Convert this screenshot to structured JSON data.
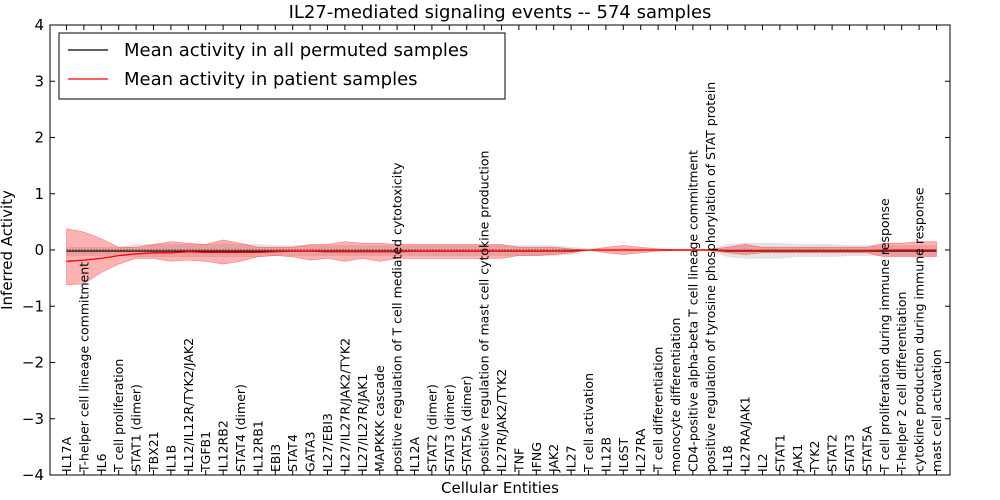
{
  "chart_data": {
    "type": "line",
    "title": "IL27-mediated signaling events -- 574 samples",
    "xlabel": "Cellular Entities",
    "ylabel": "Inferred Activity",
    "ylim": [
      -4,
      4
    ],
    "yticks": [
      4,
      3,
      2,
      1,
      0,
      -1,
      -2,
      -3,
      -4
    ],
    "ytick_labels": [
      "4",
      "3",
      "2",
      "1",
      "0",
      "−1",
      "−2",
      "−3",
      "−4"
    ],
    "legend_position": "top-left",
    "legend": [
      {
        "label": "Mean activity in all permuted samples",
        "color": "#000000"
      },
      {
        "label": "Mean activity in patient samples",
        "color": "#ff0000"
      }
    ],
    "categories": [
      "IL17A",
      "T-helper cell lineage commitment",
      "IL6",
      "T cell proliferation",
      "STAT1 (dimer)",
      "TBX21",
      "IL1B",
      "IL12/IL12R/TYK2/JAK2",
      "TGFB1",
      "IL12RB2",
      "STAT4 (dimer)",
      "IL12RB1",
      "EBI3",
      "STAT4",
      "GATA3",
      "IL27/EBI3",
      "IL27/IL27R/JAK2/TYK2",
      "IL27/IL27R/JAK1",
      "MAPKKK cascade",
      "positive regulation of T cell mediated cytotoxicity",
      "IL12A",
      "STAT2 (dimer)",
      "STAT3 (dimer)",
      "STAT5A (dimer)",
      "positive regulation of mast cell cytokine production",
      "IL27R/JAK2/TYK2",
      "TNF",
      "IFNG",
      "JAK2",
      "IL27",
      "T cell activation",
      "IL12B",
      "IL6ST",
      "IL27RA",
      "T cell differentiation",
      "monocyte differentiation",
      "CD4-positive alpha-beta T cell lineage commitment",
      "positive regulation of tyrosine phosphorylation of STAT protein",
      "IL18",
      "IL27RA/JAK1",
      "IL2",
      "STAT1",
      "JAK1",
      "TYK2",
      "STAT2",
      "STAT3",
      "STAT5A",
      "T cell proliferation during immune response",
      "T-helper 2 cell differentiation",
      "cytokine production during immune response",
      "mast cell activation"
    ],
    "series": [
      {
        "name": "Mean activity in all permuted samples",
        "color": "#000000",
        "values": [
          -0.02,
          -0.02,
          -0.02,
          -0.02,
          -0.02,
          -0.02,
          -0.02,
          -0.02,
          -0.02,
          -0.02,
          -0.02,
          -0.02,
          -0.02,
          -0.02,
          -0.02,
          -0.02,
          -0.02,
          -0.02,
          -0.02,
          -0.02,
          -0.02,
          -0.02,
          -0.02,
          -0.02,
          -0.02,
          -0.02,
          -0.02,
          -0.02,
          -0.02,
          -0.02,
          0.0,
          0.0,
          0.0,
          0.0,
          0.0,
          0.0,
          0.0,
          0.0,
          -0.02,
          -0.02,
          -0.02,
          -0.02,
          -0.02,
          -0.02,
          -0.02,
          -0.02,
          -0.02,
          -0.02,
          -0.02,
          -0.02,
          -0.02
        ],
        "band_upper": [
          0.05,
          0.05,
          0.05,
          0.05,
          0.1,
          0.1,
          0.1,
          0.1,
          0.1,
          0.1,
          0.1,
          0.1,
          0.08,
          0.08,
          0.08,
          0.08,
          0.08,
          0.08,
          0.08,
          0.08,
          0.08,
          0.08,
          0.08,
          0.08,
          0.08,
          0.08,
          0.08,
          0.08,
          0.08,
          0.05,
          0.02,
          0.02,
          0.02,
          0.02,
          0.01,
          0.01,
          0.01,
          0.01,
          0.1,
          0.12,
          0.12,
          0.12,
          0.1,
          0.1,
          0.1,
          0.08,
          0.08,
          0.08,
          0.08,
          0.08,
          0.08
        ],
        "band_lower": [
          -0.1,
          -0.1,
          -0.1,
          -0.1,
          -0.12,
          -0.12,
          -0.12,
          -0.12,
          -0.12,
          -0.12,
          -0.12,
          -0.12,
          -0.1,
          -0.1,
          -0.1,
          -0.1,
          -0.1,
          -0.1,
          -0.1,
          -0.1,
          -0.1,
          -0.1,
          -0.1,
          -0.1,
          -0.1,
          -0.1,
          -0.1,
          -0.1,
          -0.1,
          -0.08,
          -0.02,
          -0.02,
          -0.02,
          -0.02,
          -0.01,
          -0.01,
          -0.01,
          -0.01,
          -0.12,
          -0.15,
          -0.15,
          -0.15,
          -0.12,
          -0.12,
          -0.12,
          -0.1,
          -0.1,
          -0.1,
          -0.1,
          -0.1,
          -0.1
        ]
      },
      {
        "name": "Mean activity in patient samples",
        "color": "#ff0000",
        "values": [
          -0.2,
          -0.18,
          -0.15,
          -0.1,
          -0.07,
          -0.05,
          -0.05,
          -0.03,
          -0.04,
          -0.04,
          -0.04,
          -0.04,
          -0.03,
          -0.02,
          -0.02,
          -0.03,
          -0.03,
          -0.03,
          -0.03,
          -0.03,
          -0.02,
          -0.02,
          -0.02,
          -0.02,
          -0.02,
          -0.02,
          -0.02,
          -0.02,
          -0.02,
          -0.01,
          0.0,
          0.0,
          0.0,
          0.0,
          0.0,
          0.0,
          0.0,
          0.0,
          -0.01,
          -0.01,
          -0.01,
          -0.01,
          -0.01,
          -0.01,
          -0.01,
          -0.01,
          -0.01,
          0.0,
          0.0,
          0.0,
          0.0
        ],
        "band_upper": [
          0.38,
          0.32,
          0.2,
          0.05,
          0.05,
          0.1,
          0.15,
          0.12,
          0.1,
          0.18,
          0.12,
          0.05,
          0.05,
          0.05,
          0.1,
          0.1,
          0.15,
          0.12,
          0.12,
          0.1,
          0.1,
          0.1,
          0.1,
          0.1,
          0.1,
          0.1,
          0.05,
          0.05,
          0.05,
          0.02,
          0.0,
          0.05,
          0.08,
          0.05,
          0.02,
          0.01,
          0.01,
          0.01,
          0.05,
          0.1,
          0.05,
          0.05,
          0.05,
          0.05,
          0.05,
          0.05,
          0.05,
          0.12,
          0.12,
          0.15,
          0.15
        ],
        "band_lower": [
          -0.62,
          -0.6,
          -0.4,
          -0.25,
          -0.15,
          -0.15,
          -0.2,
          -0.18,
          -0.2,
          -0.25,
          -0.2,
          -0.12,
          -0.1,
          -0.12,
          -0.18,
          -0.15,
          -0.2,
          -0.15,
          -0.2,
          -0.15,
          -0.15,
          -0.15,
          -0.15,
          -0.15,
          -0.15,
          -0.15,
          -0.1,
          -0.1,
          -0.08,
          -0.05,
          0.0,
          -0.05,
          -0.08,
          -0.05,
          -0.02,
          -0.01,
          -0.01,
          -0.01,
          -0.05,
          -0.08,
          -0.05,
          -0.05,
          -0.05,
          -0.05,
          -0.05,
          -0.05,
          -0.05,
          -0.12,
          -0.12,
          -0.12,
          -0.12
        ]
      }
    ]
  }
}
